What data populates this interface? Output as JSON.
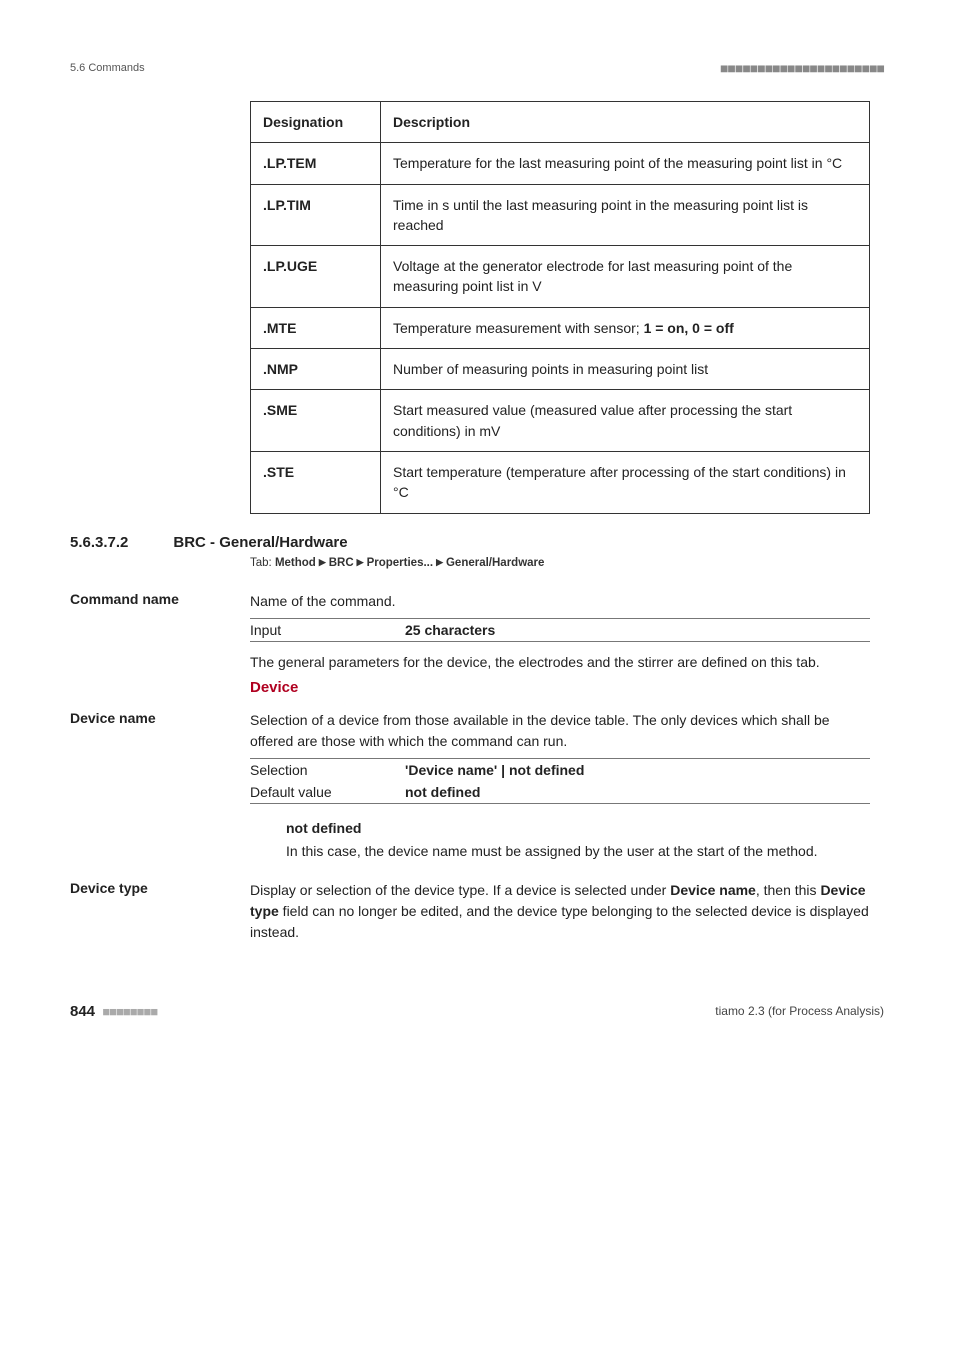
{
  "header": {
    "section": "5.6 Commands",
    "dots": "■■■■■■■■■■■■■■■■■■■■■■"
  },
  "table": {
    "headers": {
      "col1": "Designation",
      "col2": "Description"
    },
    "rows": [
      {
        "col1": ".LP.TEM",
        "col2": "Temperature for the last measuring point of the measuring point list in °C"
      },
      {
        "col1": ".LP.TIM",
        "col2": "Time in s until the last measuring point in the measuring point list is reached"
      },
      {
        "col1": ".LP.UGE",
        "col2": "Voltage at the generator electrode for last measuring point of the measuring point list in V"
      },
      {
        "col1": ".MTE",
        "col2_pre": "Temperature measurement with sensor; ",
        "col2_bold": "1 = on, 0 = off"
      },
      {
        "col1": ".NMP",
        "col2": "Number of measuring points in measuring point list"
      },
      {
        "col1": ".SME",
        "col2": "Start measured value (measured value after processing the start conditions) in mV"
      },
      {
        "col1": ".STE",
        "col2": "Start temperature (temperature after processing of the start conditions) in °C"
      }
    ]
  },
  "section": {
    "number": "5.6.3.7.2",
    "title": "BRC - General/Hardware",
    "tab_label": "Tab: ",
    "tab_parts": [
      "Method",
      "BRC",
      "Properties...",
      "General/Hardware"
    ]
  },
  "command_name": {
    "label": "Command name",
    "desc": "Name of the command.",
    "input_label": "Input",
    "input_value": "25 characters",
    "note": "The general parameters for the device, the electrodes and the stirrer are defined on this tab."
  },
  "device_heading": "Device",
  "device_name": {
    "label": "Device name",
    "desc": "Selection of a device from those available in the device table. The only devices which shall be offered are those with which the command can run.",
    "rows": [
      {
        "label": "Selection",
        "value": "'Device name' | not defined"
      },
      {
        "label": "Default value",
        "value": "not defined"
      }
    ],
    "notdef_label": "not defined",
    "notdef_desc": "In this case, the device name must be assigned by the user at the start of the method."
  },
  "device_type": {
    "label": "Device type",
    "desc_pre": "Display or selection of the device type. If a device is selected under ",
    "desc_bold1": "Device name",
    "desc_mid": ", then this ",
    "desc_bold2": "Device type",
    "desc_post": " field can no longer be edited, and the device type belonging to the selected device is displayed instead."
  },
  "footer": {
    "page": "844",
    "dots": "■■■■■■■■",
    "right": "tiamo 2.3 (for Process Analysis)"
  }
}
